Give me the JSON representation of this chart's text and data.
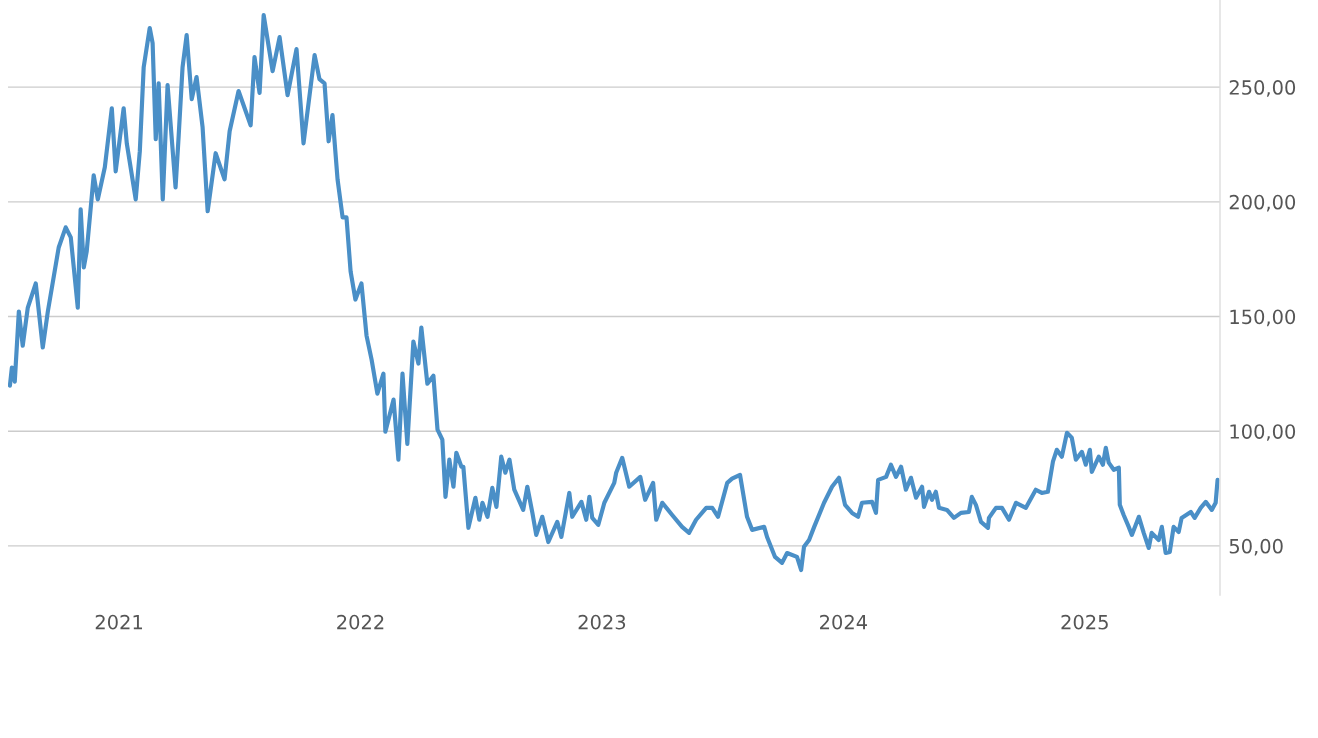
{
  "chart_data": {
    "type": "line",
    "x": [
      2020.548,
      2020.556,
      2020.568,
      2020.585,
      2020.601,
      2020.622,
      2020.655,
      2020.684,
      2020.705,
      2020.75,
      2020.779,
      2020.8,
      2020.829,
      2020.841,
      2020.854,
      2020.866,
      2020.895,
      2020.912,
      2020.941,
      2020.97,
      2020.986,
      2021.019,
      2021.032,
      2021.069,
      2021.086,
      2021.102,
      2021.127,
      2021.139,
      2021.152,
      2021.164,
      2021.181,
      2021.201,
      2021.234,
      2021.247,
      2021.263,
      2021.28,
      2021.301,
      2021.321,
      2021.346,
      2021.367,
      2021.4,
      2021.437,
      2021.458,
      2021.495,
      2021.545,
      2021.561,
      2021.582,
      2021.599,
      2021.636,
      2021.665,
      2021.698,
      2021.735,
      2021.764,
      2021.81,
      2021.83,
      2021.851,
      2021.868,
      2021.884,
      2021.905,
      2021.926,
      2021.942,
      2021.959,
      2021.979,
      2022.004,
      2022.025,
      2022.046,
      2022.07,
      2022.095,
      2022.103,
      2022.137,
      2022.157,
      2022.174,
      2022.194,
      2022.219,
      2022.24,
      2022.252,
      2022.277,
      2022.302,
      2022.319,
      2022.339,
      2022.352,
      2022.368,
      2022.385,
      2022.397,
      2022.418,
      2022.426,
      2022.447,
      2022.476,
      2022.492,
      2022.505,
      2022.526,
      2022.546,
      2022.563,
      2022.583,
      2022.6,
      2022.617,
      2022.637,
      2022.674,
      2022.691,
      2022.712,
      2022.728,
      2022.753,
      2022.778,
      2022.815,
      2022.832,
      2022.865,
      2022.877,
      2022.915,
      2022.935,
      2022.948,
      2022.96,
      2022.985,
      2023.01,
      2023.051,
      2023.059,
      2023.084,
      2023.113,
      2023.159,
      2023.179,
      2023.212,
      2023.225,
      2023.25,
      2023.291,
      2023.332,
      2023.361,
      2023.39,
      2023.432,
      2023.457,
      2023.481,
      2023.519,
      2023.539,
      2023.572,
      2023.601,
      2023.622,
      2023.672,
      2023.684,
      2023.717,
      2023.746,
      2023.767,
      2023.808,
      2023.825,
      2023.837,
      2023.858,
      2023.879,
      2023.92,
      2023.953,
      2023.982,
      2024.007,
      2024.036,
      2024.061,
      2024.077,
      2024.119,
      2024.135,
      2024.144,
      2024.177,
      2024.197,
      2024.218,
      2024.239,
      2024.259,
      2024.28,
      2024.301,
      2024.326,
      2024.334,
      2024.355,
      2024.367,
      2024.383,
      2024.396,
      2024.429,
      2024.458,
      2024.487,
      2024.52,
      2024.532,
      2024.549,
      2024.57,
      2024.599,
      2024.603,
      2024.632,
      2024.657,
      2024.686,
      2024.715,
      2024.756,
      2024.797,
      2024.822,
      2024.847,
      2024.868,
      2024.884,
      2024.905,
      2024.926,
      2024.946,
      2024.963,
      2024.988,
      2025.004,
      2025.021,
      2025.029,
      2025.058,
      2025.075,
      2025.087,
      2025.099,
      2025.12,
      2025.141,
      2025.145,
      2025.161,
      2025.182,
      2025.195,
      2025.224,
      2025.244,
      2025.265,
      2025.277,
      2025.306,
      2025.319,
      2025.335,
      2025.352,
      2025.368,
      2025.389,
      2025.401,
      2025.439,
      2025.455,
      2025.48,
      2025.501,
      2025.526,
      2025.542,
      2025.55
    ],
    "series": [
      {
        "color": "#4a8fc7",
        "values": [
          119.9,
          127.7,
          121.6,
          152.2,
          137.3,
          153.9,
          164.4,
          136.5,
          152.2,
          180.1,
          188.9,
          184.5,
          153.9,
          196.7,
          171.4,
          178.4,
          211.6,
          201.1,
          215.1,
          240.8,
          213.3,
          240.8,
          225.5,
          201.1,
          222.1,
          258.7,
          275.8,
          269.2,
          227.3,
          251.7,
          201.1,
          250.9,
          206.3,
          229.0,
          258.7,
          272.7,
          244.8,
          254.4,
          232.5,
          195.9,
          221.2,
          209.8,
          230.8,
          248.3,
          233.4,
          263.1,
          247.5,
          281.4,
          257.0,
          271.8,
          246.5,
          266.6,
          225.5,
          264.0,
          253.5,
          251.7,
          226.4,
          237.8,
          209.8,
          193.2,
          193.2,
          169.7,
          157.4,
          164.4,
          141.7,
          131.2,
          116.4,
          125.1,
          99.8,
          113.8,
          87.6,
          125.1,
          94.5,
          139.1,
          129.5,
          145.2,
          120.7,
          124.2,
          100.7,
          96.3,
          71.4,
          87.6,
          75.8,
          90.6,
          84.5,
          84.5,
          57.9,
          71.0,
          61.4,
          68.8,
          62.7,
          75.3,
          67.0,
          88.9,
          81.9,
          87.6,
          74.5,
          65.7,
          75.8,
          64.4,
          54.8,
          62.7,
          51.7,
          60.5,
          53.9,
          73.1,
          62.7,
          69.2,
          61.4,
          71.4,
          62.2,
          59.2,
          68.8,
          77.5,
          81.9,
          88.4,
          75.8,
          80.1,
          70.1,
          77.5,
          61.4,
          68.8,
          63.5,
          58.3,
          55.7,
          61.4,
          66.6,
          66.6,
          62.7,
          77.5,
          79.3,
          81.0,
          62.7,
          57.0,
          58.3,
          53.9,
          45.2,
          42.6,
          46.9,
          45.2,
          39.5,
          49.6,
          52.6,
          58.3,
          68.8,
          75.8,
          79.7,
          67.9,
          64.4,
          62.7,
          68.8,
          69.2,
          64.4,
          78.8,
          80.1,
          85.4,
          80.1,
          84.5,
          74.5,
          79.7,
          71.0,
          75.8,
          67.0,
          73.6,
          70.1,
          73.6,
          66.6,
          65.7,
          62.2,
          64.4,
          64.8,
          71.4,
          67.9,
          60.5,
          57.9,
          62.2,
          66.6,
          66.6,
          61.4,
          68.8,
          66.6,
          74.5,
          73.1,
          73.6,
          86.7,
          91.9,
          88.9,
          99.3,
          97.2,
          87.6,
          91.0,
          85.4,
          91.9,
          82.3,
          88.9,
          85.4,
          92.8,
          86.3,
          83.2,
          84.1,
          67.9,
          63.5,
          58.3,
          54.8,
          62.7,
          55.7,
          49.1,
          55.7,
          52.6,
          58.3,
          46.9,
          47.4,
          58.3,
          56.1,
          62.2,
          64.8,
          62.2,
          66.6,
          69.2,
          65.7,
          68.8,
          78.8
        ]
      }
    ],
    "xlim": [
      2020.54,
      2025.56
    ],
    "xticks": [
      2021,
      2022,
      2023,
      2024,
      2025
    ],
    "ylim": [
      28.6,
      288
    ],
    "yticks": [
      {
        "value": 50,
        "label": "50,00"
      },
      {
        "value": 100,
        "label": "100,00"
      },
      {
        "value": 150,
        "label": "150,00"
      },
      {
        "value": 200,
        "label": "200,00"
      },
      {
        "value": 250,
        "label": "250,00"
      }
    ],
    "grid": "y",
    "marker": "none",
    "line_style": "solid"
  }
}
